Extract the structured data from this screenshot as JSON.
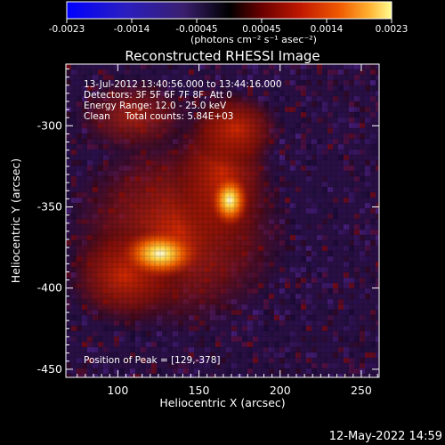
{
  "colorbar": {
    "ticks": [
      "-0.0023",
      "-0.0014",
      "-0.00045",
      "0.00045",
      "0.0014",
      "0.0023"
    ],
    "unit_label": "(photons cm⁻² s⁻¹ asec⁻²)",
    "colors": [
      "#0000ff",
      "#2020c0",
      "#3a1f6e",
      "#000000",
      "#5a0000",
      "#b01000",
      "#e84000",
      "#ff9a20",
      "#ffff80"
    ]
  },
  "title": "Reconstructed RHESSI Image",
  "annotations": {
    "time_range": "13-Jul-2012 13:40:56.000 to 13:44:16.000",
    "detectors": "Detectors: 3F 5F 6F 7F 8F, Att 0",
    "energy_range": "Energy Range: 12.0 - 25.0 keV",
    "clean": "Clean     Total counts: 5.84E+03",
    "peak": "Position of Peak = [129,-378]"
  },
  "axes": {
    "xlabel": "Heliocentric X (arcsec)",
    "ylabel": "Heliocentric Y (arcsec)",
    "x_ticks": [
      "100",
      "150",
      "200",
      "250"
    ],
    "y_ticks": [
      "-300",
      "-350",
      "-400",
      "-450"
    ],
    "x_tick_values": [
      100,
      150,
      200,
      250
    ],
    "y_tick_values": [
      -300,
      -350,
      -400,
      -450
    ],
    "xlim": [
      68,
      261
    ],
    "ylim": [
      -455,
      -262
    ]
  },
  "footer": {
    "timestamp": "12-May-2022 14:59"
  },
  "image_data": {
    "peak_position": [
      129,
      -378
    ],
    "sources": [
      {
        "x": 129,
        "y": -378
      },
      {
        "x": 168,
        "y": -340
      }
    ]
  }
}
